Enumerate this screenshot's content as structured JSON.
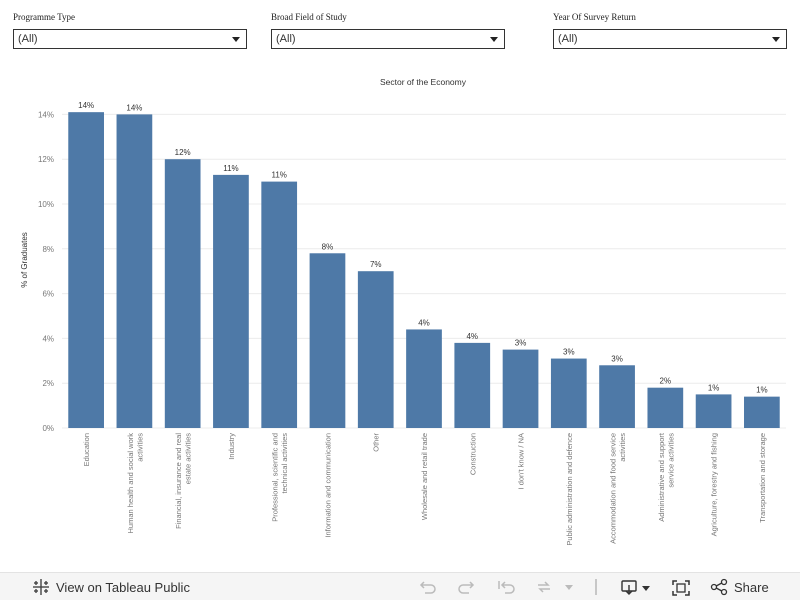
{
  "filters": [
    {
      "label": "Programme Type",
      "value": "(All)"
    },
    {
      "label": "Broad Field of Study",
      "value": "(All)"
    },
    {
      "label": "Year Of Survey Return",
      "value": "(All)"
    }
  ],
  "chart_data": {
    "type": "bar",
    "title": "Sector of the Economy",
    "xlabel": "",
    "ylabel": "% of Graduates",
    "ylim": [
      0,
      15
    ],
    "yticks": [
      "0%",
      "2%",
      "4%",
      "6%",
      "8%",
      "10%",
      "12%",
      "14%"
    ],
    "categories": [
      "Education",
      "Human health and social work activities",
      "Financial, insurance and real estate activities",
      "Industry",
      "Professional, scientific and technical activities",
      "Information and communication",
      "Other",
      "Wholesale and retail trade",
      "Construction",
      "I don't know / NA",
      "Public administration and defence",
      "Accommodation and food service activities",
      "Administrative and support service activities",
      "Agriculture, forestry and fishing",
      "Transportation and storage"
    ],
    "category_lines": [
      [
        "Education"
      ],
      [
        "Human health and social work",
        "activities"
      ],
      [
        "Financial, insurance and real",
        "estate activities"
      ],
      [
        "Industry"
      ],
      [
        "Professional, scientific and",
        "technical activities"
      ],
      [
        "Information and communication"
      ],
      [
        "Other"
      ],
      [
        "Wholesale and retail trade"
      ],
      [
        "Construction"
      ],
      [
        "I don't know / NA"
      ],
      [
        "Public administration and defence"
      ],
      [
        "Accommodation and food service",
        "activities"
      ],
      [
        "Administrative and support",
        "service activities"
      ],
      [
        "Agriculture, forestry and fishing"
      ],
      [
        "Transportation and storage"
      ]
    ],
    "values": [
      14.1,
      14.0,
      12.0,
      11.3,
      11.0,
      7.8,
      7.0,
      4.4,
      3.8,
      3.5,
      3.1,
      2.8,
      1.8,
      1.5,
      1.4
    ],
    "data_labels": [
      "14%",
      "14%",
      "12%",
      "11%",
      "11%",
      "8%",
      "7%",
      "4%",
      "4%",
      "3%",
      "3%",
      "3%",
      "2%",
      "1%",
      "1%"
    ],
    "bar_color": "#4e79a7",
    "grid": true
  },
  "footer": {
    "link_label": "View on Tableau Public",
    "share_label": "Share"
  }
}
